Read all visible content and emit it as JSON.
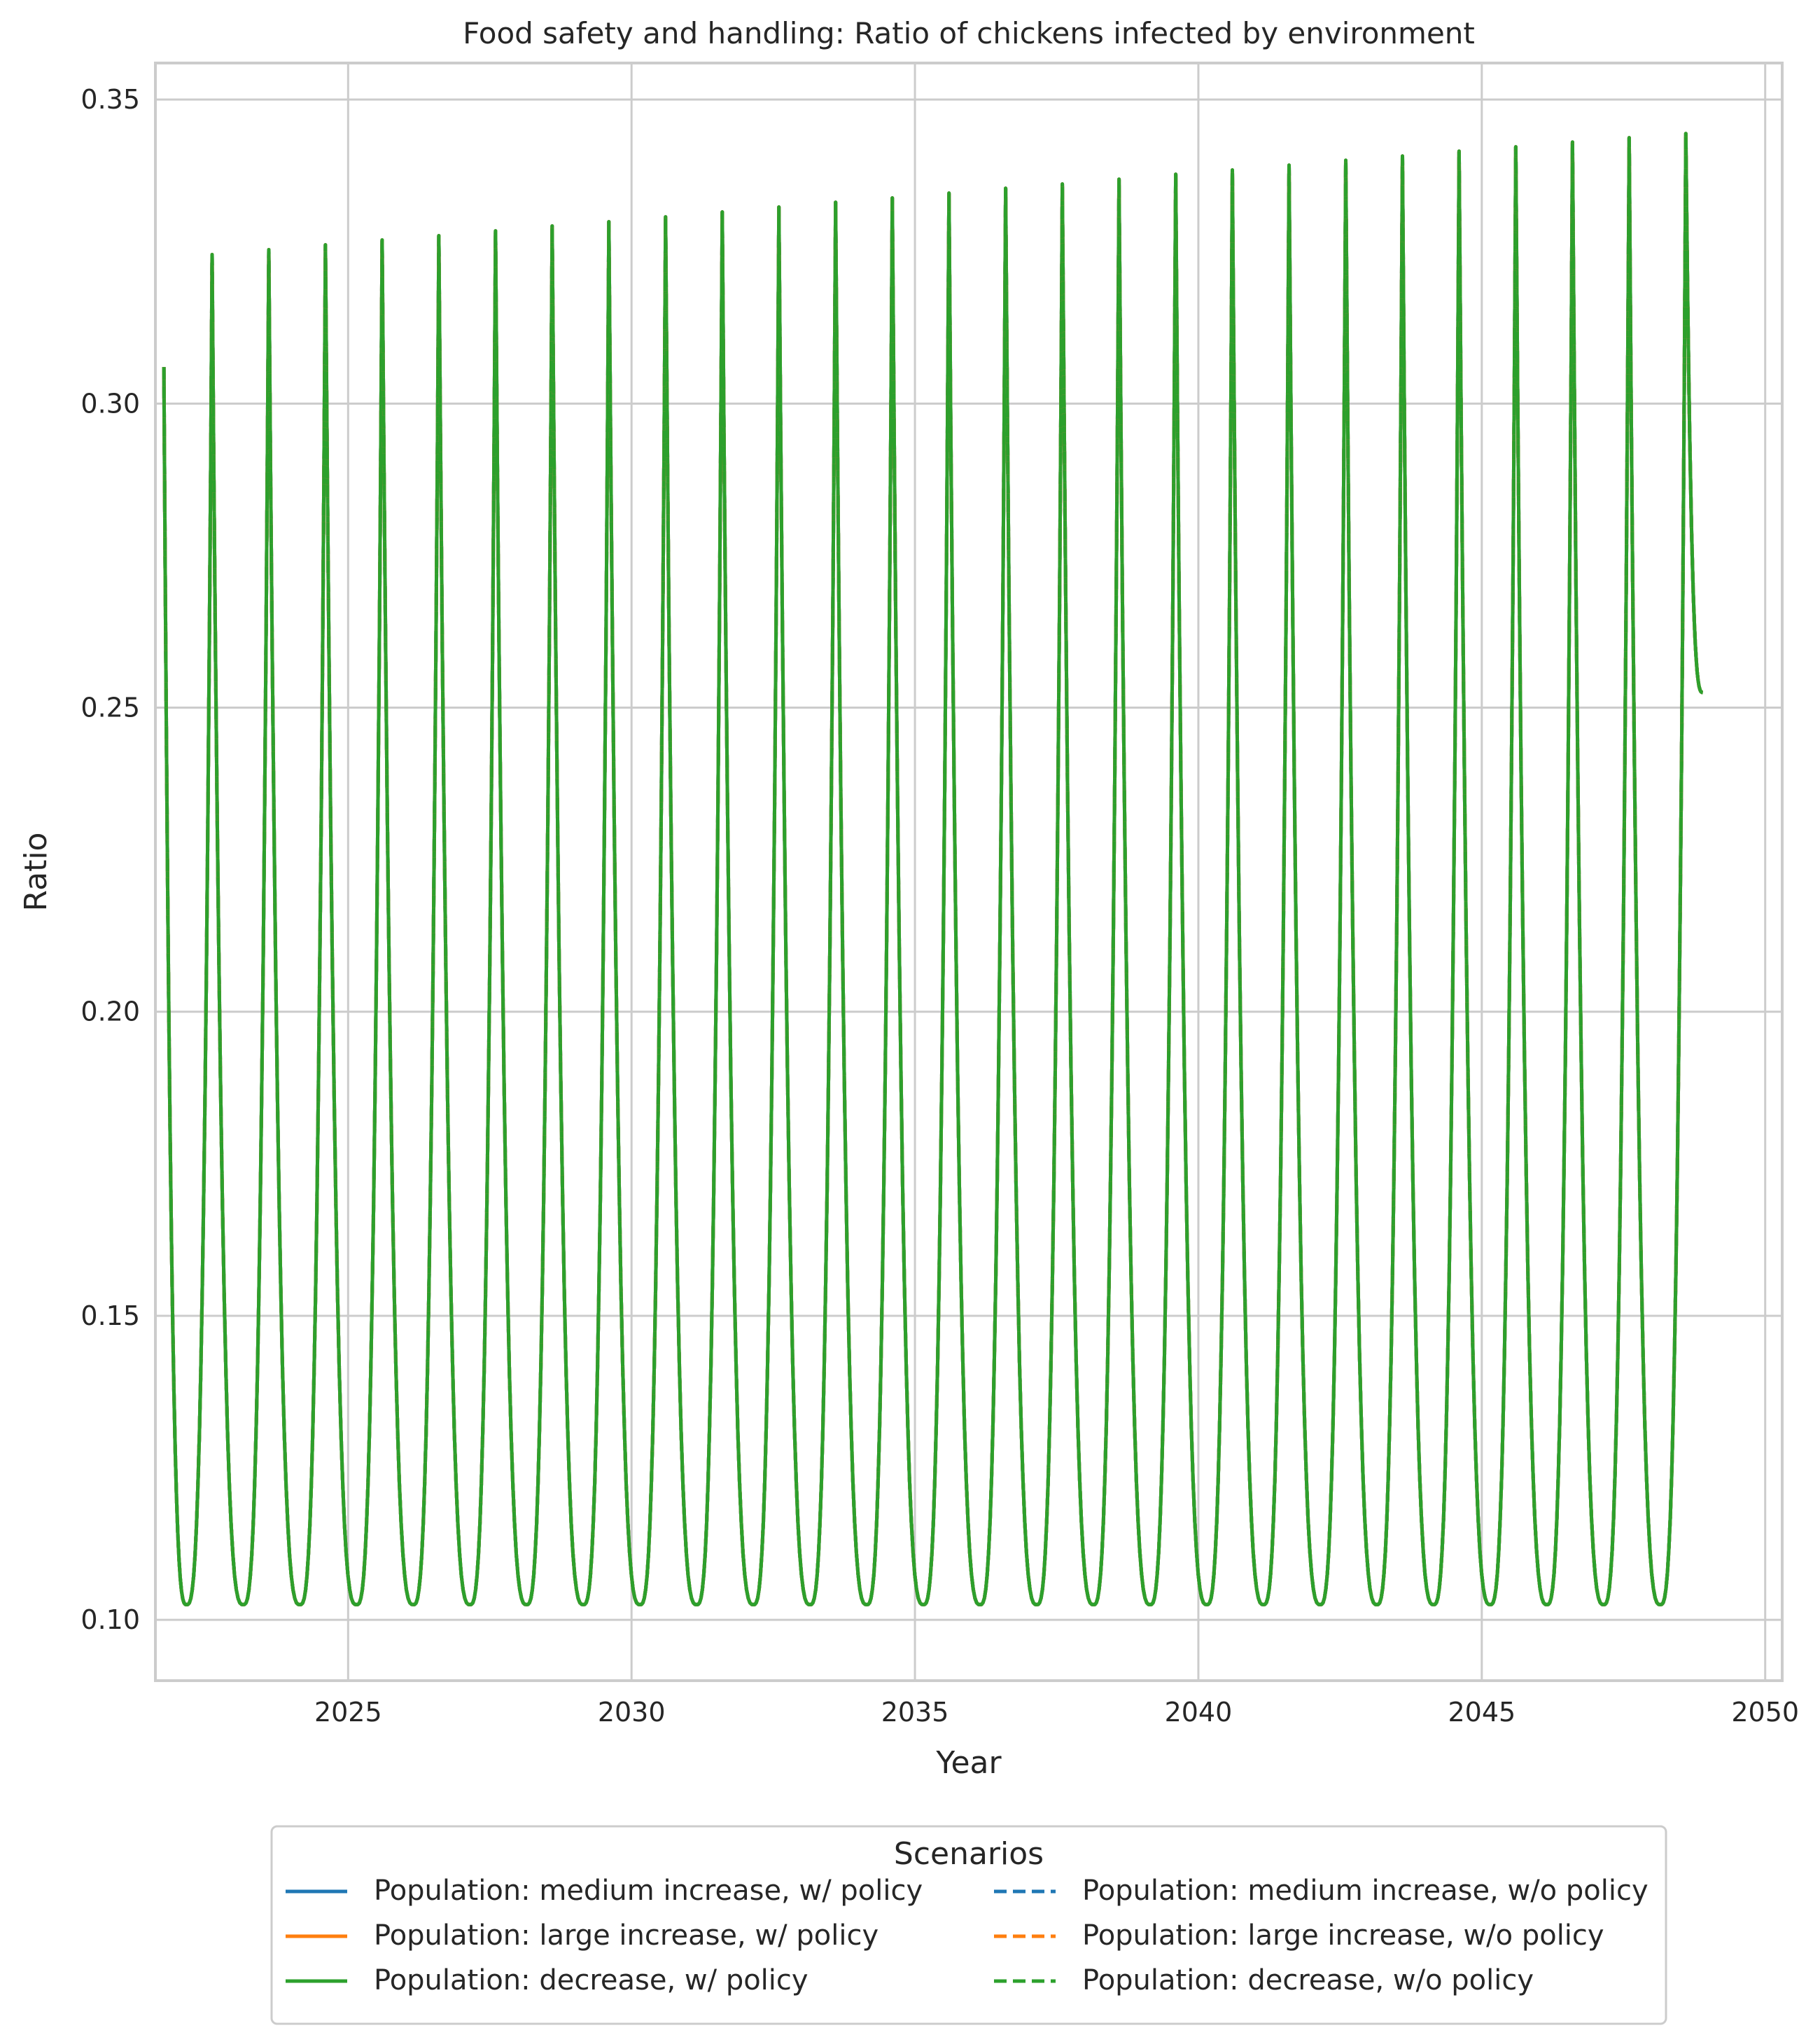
{
  "chart_data": {
    "type": "line",
    "title": "Food safety and handling: Ratio of chickens infected by environment",
    "xlabel": "Year",
    "ylabel": "Ratio",
    "xlim": [
      2021.6,
      2050.3
    ],
    "ylim": [
      0.09,
      0.356
    ],
    "x_ticks": [
      2025,
      2030,
      2035,
      2040,
      2045,
      2050
    ],
    "x_tick_labels": [
      "2025",
      "2030",
      "2035",
      "2040",
      "2045",
      "2050"
    ],
    "y_ticks": [
      0.1,
      0.15,
      0.2,
      0.25,
      0.3,
      0.35
    ],
    "y_tick_labels": [
      "0.10",
      "0.15",
      "0.20",
      "0.25",
      "0.30",
      "0.35"
    ],
    "grid": true,
    "legend_placement": "bottom-center, outside plot, two columns",
    "legend_title": "Scenarios",
    "x": [
      2021.75,
      2022.15,
      2022.6,
      2023.15,
      2023.6,
      2024.15,
      2024.6,
      2025.15,
      2025.6,
      2026.15,
      2026.6,
      2027.15,
      2027.6,
      2028.15,
      2028.6,
      2029.15,
      2029.6,
      2030.15,
      2030.6,
      2031.15,
      2031.6,
      2032.15,
      2032.6,
      2033.15,
      2033.6,
      2034.15,
      2034.6,
      2035.15,
      2035.6,
      2036.15,
      2036.6,
      2037.15,
      2037.6,
      2038.15,
      2038.6,
      2039.15,
      2039.6,
      2040.15,
      2040.6,
      2041.15,
      2041.6,
      2042.15,
      2042.6,
      2043.15,
      2043.6,
      2044.15,
      2044.6,
      2045.15,
      2045.6,
      2046.15,
      2046.6,
      2047.15,
      2047.6,
      2048.15,
      2048.6,
      2048.9
    ],
    "peak_values": [
      0.306,
      0.3245,
      0.3253,
      0.3261,
      0.3269,
      0.3276,
      0.3284,
      0.3292,
      0.3299,
      0.3307,
      0.3315,
      0.3323,
      0.3331,
      0.3338,
      0.3346,
      0.3354,
      0.3361,
      0.3369,
      0.3377,
      0.3384,
      0.3392,
      0.34,
      0.3407,
      0.3415,
      0.3422,
      0.343,
      0.3437,
      0.3444
    ],
    "trough_value": 0.1025,
    "end_value": 0.2525,
    "series": [
      {
        "name": "Population: medium increase, w/ policy",
        "color": "#1f77b4",
        "dash": "solid"
      },
      {
        "name": "Population: large increase, w/ policy",
        "color": "#ff7f0e",
        "dash": "solid"
      },
      {
        "name": "Population: decrease, w/ policy",
        "color": "#2ca02c",
        "dash": "solid"
      },
      {
        "name": "Population: medium increase, w/o policy",
        "color": "#1f77b4",
        "dash": "dashed"
      },
      {
        "name": "Population: large increase, w/o policy",
        "color": "#ff7f0e",
        "dash": "dashed"
      },
      {
        "name": "Population: decrease, w/o policy",
        "color": "#2ca02c",
        "dash": "dashed"
      }
    ]
  }
}
